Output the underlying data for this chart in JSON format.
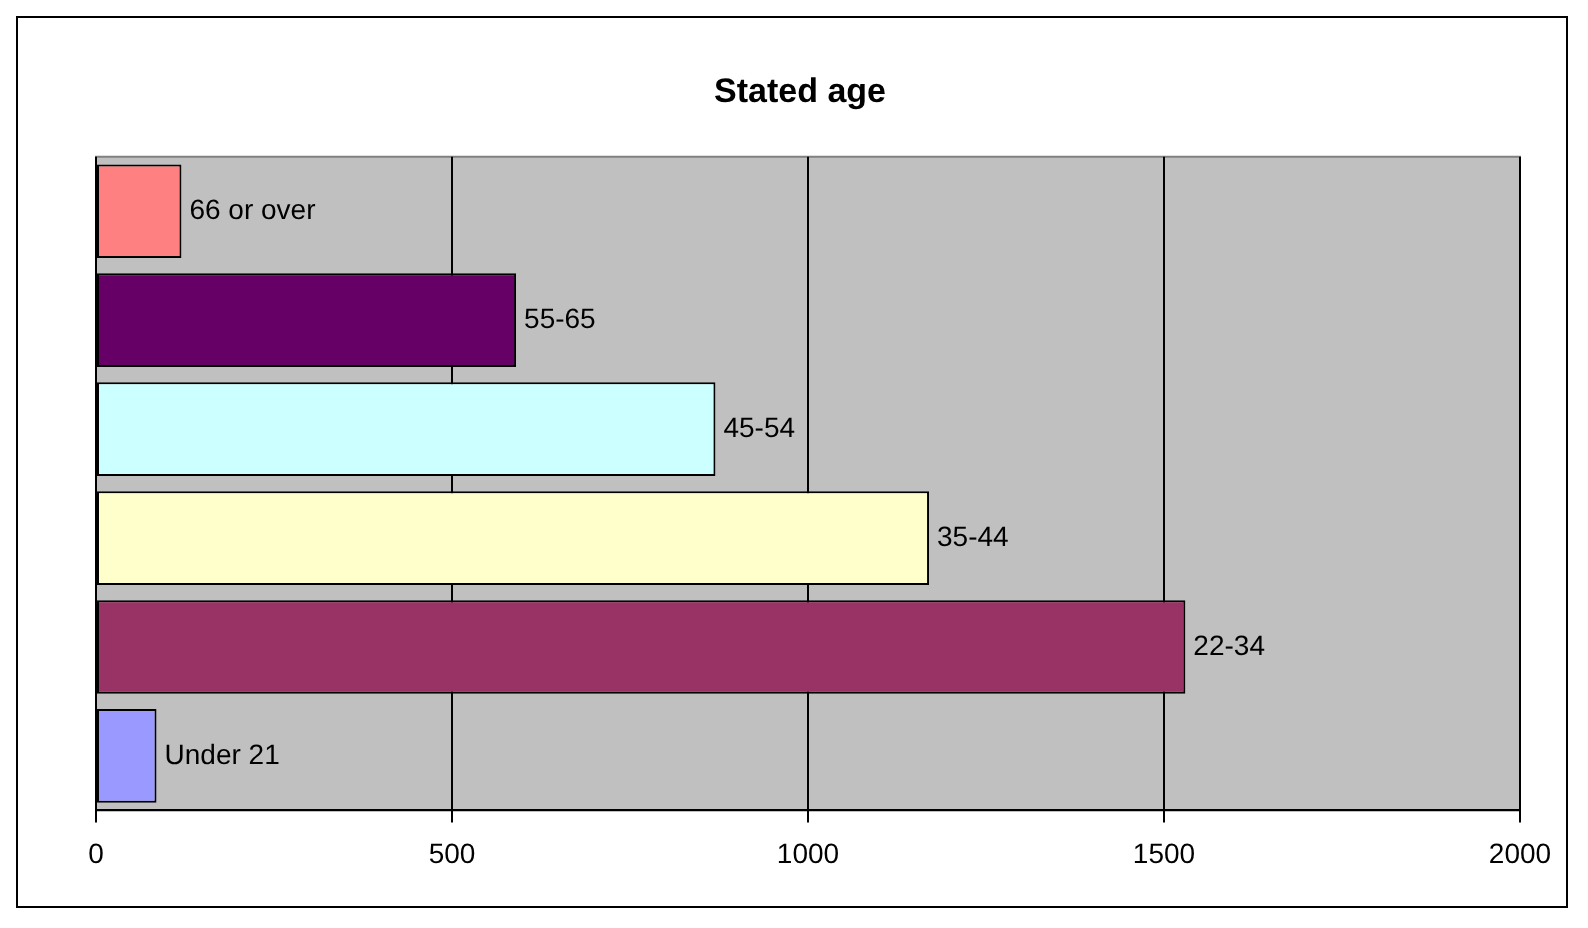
{
  "chart_data": {
    "type": "bar",
    "orientation": "horizontal",
    "title": "Stated age",
    "categories": [
      "66 or over",
      "55-65",
      "45-54",
      "35-44",
      "22-34",
      "Under 21"
    ],
    "values": [
      120,
      590,
      870,
      1170,
      1530,
      85
    ],
    "colors": [
      "#ff8080",
      "#660066",
      "#ccffff",
      "#ffffcc",
      "#993366",
      "#9999ff"
    ],
    "xlim": [
      0,
      2000
    ],
    "xticks": [
      0,
      500,
      1000,
      1500,
      2000
    ],
    "grid": "x",
    "tick_labels": "x",
    "legend": false
  }
}
